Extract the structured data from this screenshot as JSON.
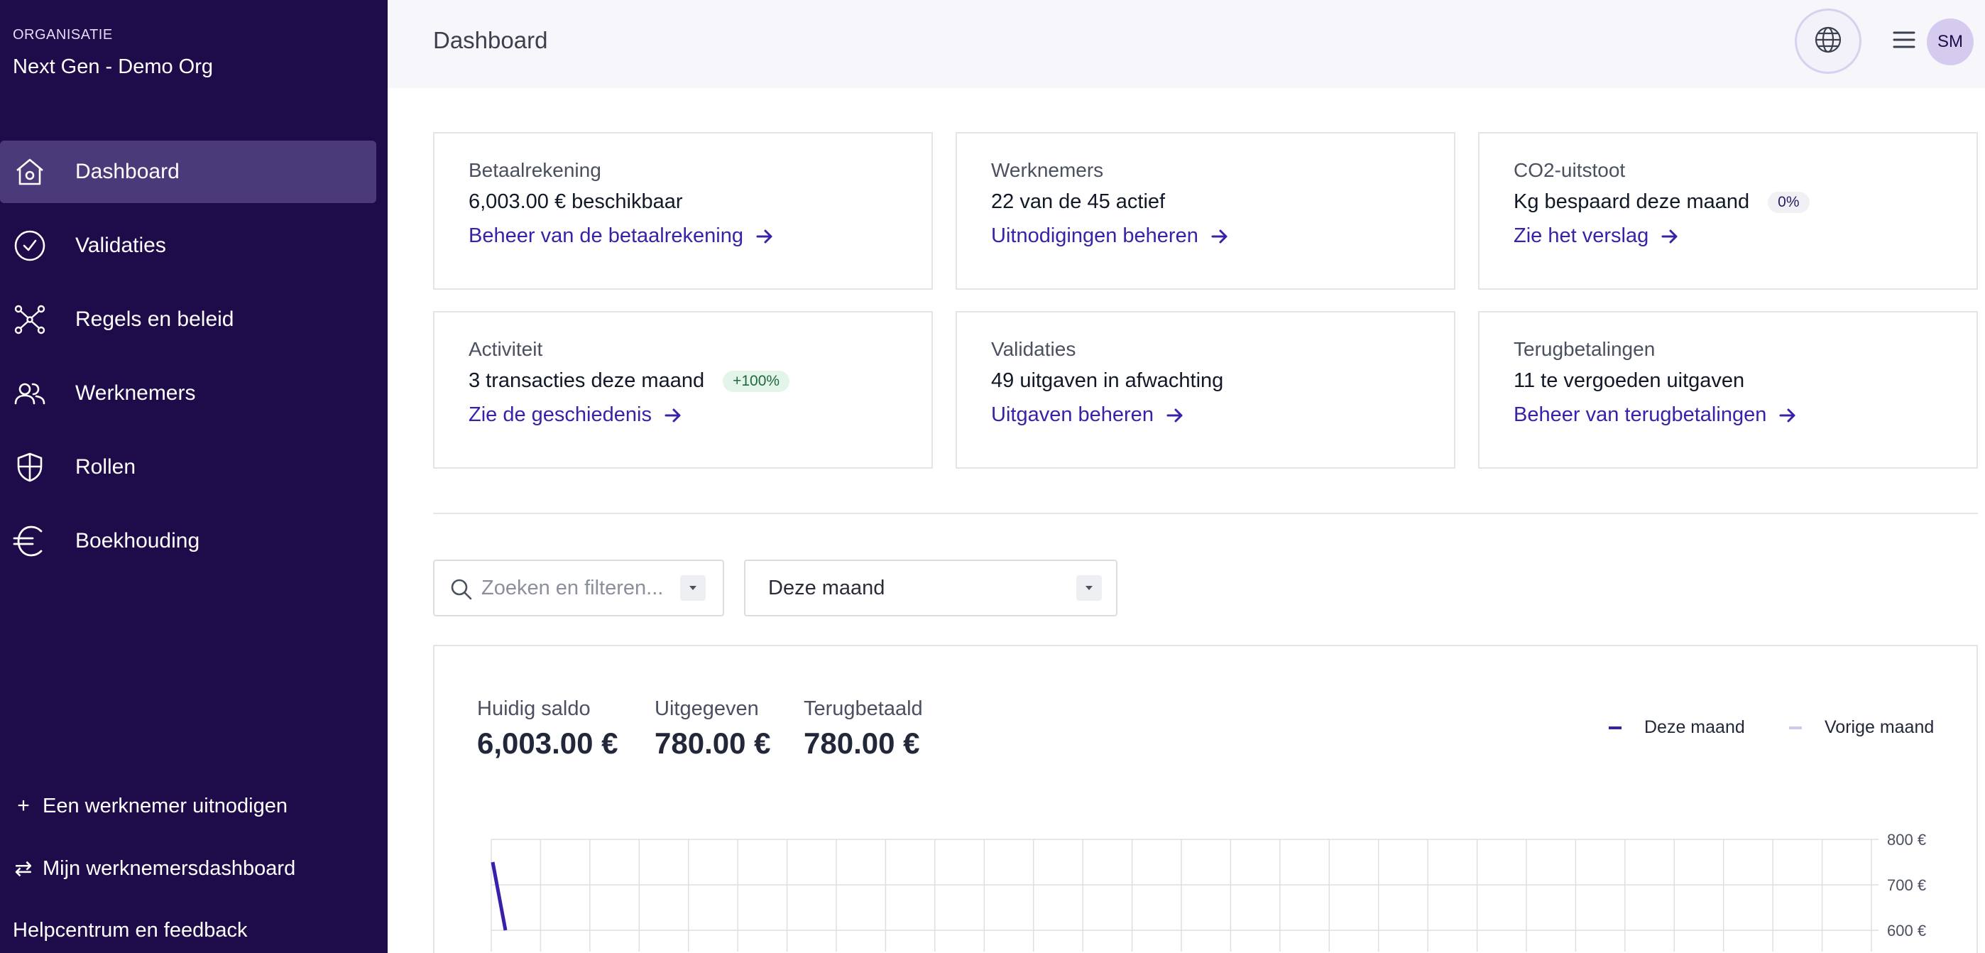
{
  "sidebar": {
    "org_label": "ORGANISATIE",
    "org_name": "Next Gen - Demo Org",
    "items": [
      {
        "label": "Dashboard",
        "icon": "home-icon",
        "active": true
      },
      {
        "label": "Validaties",
        "icon": "check-circle-icon"
      },
      {
        "label": "Regels en beleid",
        "icon": "network-icon"
      },
      {
        "label": "Werknemers",
        "icon": "users-icon"
      },
      {
        "label": "Rollen",
        "icon": "shield-icon"
      },
      {
        "label": "Boekhouding",
        "icon": "euro-icon"
      }
    ],
    "invite_label": "Een werknemer uitnodigen",
    "employee_dashboard_label": "Mijn werknemersdashboard",
    "help_label": "Helpcentrum en feedback"
  },
  "header": {
    "title": "Dashboard",
    "avatar_initials": "SM"
  },
  "cards": [
    {
      "title": "Betaalrekening",
      "value": "6,003.00 € beschikbaar",
      "link": "Beheer van de betaalrekening"
    },
    {
      "title": "Werknemers",
      "value": "22 van de 45 actief",
      "link": "Uitnodigingen beheren"
    },
    {
      "title": "CO2-uitstoot",
      "value": "Kg bespaard deze maand",
      "badge": "0%",
      "link": "Zie het verslag"
    },
    {
      "title": "Activiteit",
      "value": "3 transacties deze maand",
      "badge": "+100%",
      "link": "Zie de geschiedenis"
    },
    {
      "title": "Validaties",
      "value": "49 uitgaven in afwachting",
      "link": "Uitgaven beheren"
    },
    {
      "title": "Terugbetalingen",
      "value": "11 te vergoeden uitgaven",
      "link": "Beheer van terugbetalingen"
    }
  ],
  "filters": {
    "search_placeholder": "Zoeken en filteren...",
    "period_value": "Deze maand"
  },
  "stats": [
    {
      "label": "Huidig saldo",
      "value": "6,003.00 €"
    },
    {
      "label": "Uitgegeven",
      "value": "780.00 €"
    },
    {
      "label": "Terugbetaald",
      "value": "780.00 €"
    }
  ],
  "colors": {
    "sidebar_bg": "#1e0b4a",
    "accent": "#3b21a8",
    "current_series": "#3a1fa8",
    "previous_series": "#cfc8ef"
  },
  "chart_data": {
    "type": "line",
    "y_tick_labels": [
      "800 €",
      "700 €",
      "600 €"
    ],
    "ylim": [
      600,
      800
    ],
    "grid": true,
    "legend_position": "top-right",
    "series": [
      {
        "name": "Deze maand",
        "color": "#3a1fa8",
        "x": [
          1,
          1.03
        ],
        "values": [
          750,
          600
        ]
      },
      {
        "name": "Vorige maand",
        "color": "#cfc8ef",
        "x": [],
        "values": []
      }
    ],
    "x_grid_count": 29
  }
}
